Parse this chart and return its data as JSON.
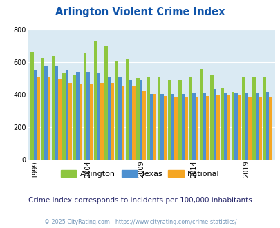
{
  "title": "Arlington Violent Crime Index",
  "years": [
    1999,
    2000,
    2001,
    2002,
    2003,
    2004,
    2005,
    2006,
    2007,
    2008,
    2009,
    2010,
    2011,
    2012,
    2013,
    2014,
    2015,
    2016,
    2017,
    2018,
    2019,
    2020,
    2021
  ],
  "arlington": [
    665,
    625,
    638,
    530,
    525,
    655,
    730,
    700,
    603,
    615,
    500,
    510,
    510,
    488,
    490,
    510,
    558,
    520,
    442,
    415,
    512,
    512,
    510
  ],
  "texas": [
    550,
    575,
    580,
    550,
    540,
    540,
    535,
    510,
    510,
    490,
    490,
    405,
    405,
    402,
    403,
    408,
    411,
    433,
    410,
    413,
    413,
    410,
    415
  ],
  "national": [
    508,
    508,
    498,
    470,
    465,
    465,
    470,
    470,
    455,
    455,
    425,
    403,
    390,
    388,
    383,
    383,
    390,
    397,
    398,
    400,
    383,
    383,
    385
  ],
  "arlington_color": "#8dc63f",
  "texas_color": "#4d90d0",
  "national_color": "#f5a623",
  "bg_color": "#daeaf3",
  "ylim": [
    0,
    800
  ],
  "yticks": [
    0,
    200,
    400,
    600,
    800
  ],
  "subtitle": "Crime Index corresponds to incidents per 100,000 inhabitants",
  "footer": "© 2025 CityRating.com - https://www.cityrating.com/crime-statistics/",
  "legend_labels": [
    "Arlington",
    "Texas",
    "National"
  ],
  "title_color": "#1155aa",
  "subtitle_color": "#222266",
  "footer_color": "#7799bb",
  "tick_years": [
    1999,
    2004,
    2009,
    2014,
    2019
  ]
}
